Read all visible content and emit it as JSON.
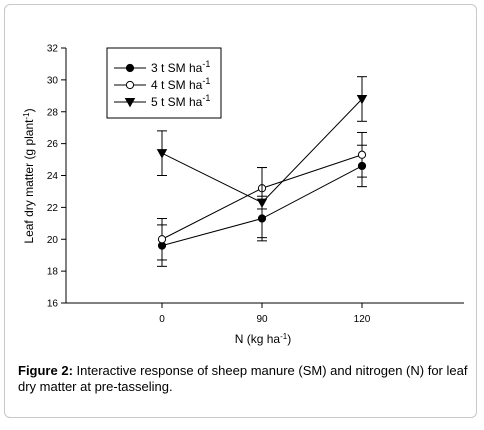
{
  "caption": {
    "label": "Figure 2:",
    "text": "Interactive response of sheep manure (SM) and nitrogen (N) for leaf dry matter at pre-tasseling."
  },
  "chart_data": {
    "type": "line",
    "xlabel": {
      "base": "N (kg ha",
      "sup": "-1",
      "tail": ")"
    },
    "ylabel": {
      "base": "Leaf dry matter (g plant",
      "sup": "-1",
      "tail": ")"
    },
    "x_categories": [
      "0",
      "90",
      "120"
    ],
    "yticks": [
      16,
      18,
      20,
      22,
      24,
      26,
      28,
      30,
      32
    ],
    "ylim": [
      16,
      32
    ],
    "legend_position": "top-left",
    "grid": false,
    "series": [
      {
        "name_base": "3 t SM ha",
        "name_sup": "-1",
        "marker": "filled-circle",
        "values": [
          19.6,
          21.3,
          24.6
        ],
        "errors": [
          1.3,
          1.4,
          1.3
        ]
      },
      {
        "name_base": "4 t SM ha",
        "name_sup": "-1",
        "marker": "open-circle",
        "values": [
          20.0,
          23.2,
          25.3
        ],
        "errors": [
          1.3,
          1.3,
          1.4
        ]
      },
      {
        "name_base": "5 t SM ha",
        "name_sup": "-1",
        "marker": "filled-triangle-down",
        "values": [
          25.4,
          22.3,
          28.8
        ],
        "errors": [
          1.4,
          2.2,
          1.4
        ]
      }
    ]
  }
}
